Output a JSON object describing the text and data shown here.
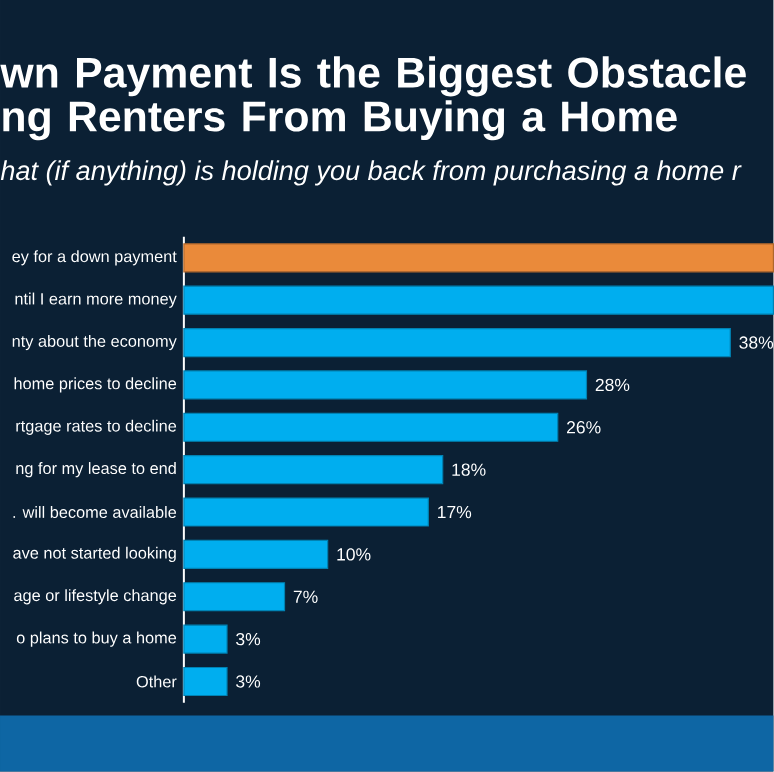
{
  "chart_data": {
    "type": "bar",
    "orientation": "horizontal",
    "title": "wn Payment Is the Biggest Obstacle ng Renters From Buying a Home",
    "subtitle": "hat (if anything) is holding you back from purchasing a home r",
    "categories": [
      "ey for a down payment",
      "ntil I earn more money",
      "nty about the economy",
      "home prices to decline",
      "rtgage rates to decline",
      "ng for my lease to end",
      ". will become available",
      "ave not started looking",
      "age or lifestyle change",
      "o plans to buy a home",
      "Other"
    ],
    "values": [
      41,
      41,
      38,
      28,
      26,
      18,
      17,
      10,
      7,
      3,
      3
    ],
    "value_labels": [
      null,
      null,
      "38%",
      "28%",
      "26%",
      "18%",
      "17%",
      "10%",
      "7%",
      "3%",
      "3%"
    ],
    "colors": [
      "#ea8a3a",
      "#00aeef",
      "#00aeef",
      "#00aeef",
      "#00aeef",
      "#00aeef",
      "#00aeef",
      "#00aeef",
      "#00aeef",
      "#00aeef",
      "#00aeef"
    ],
    "xlim": [
      0,
      41
    ],
    "tick_labels": "y"
  }
}
